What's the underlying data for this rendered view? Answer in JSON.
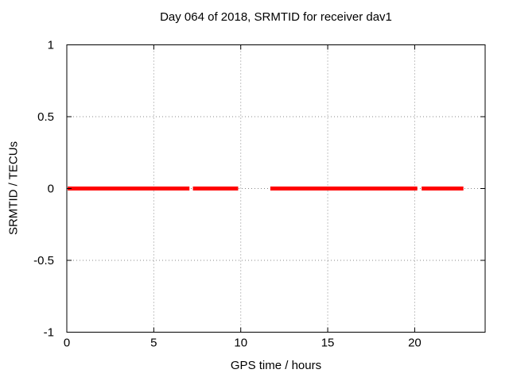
{
  "chart_data": {
    "type": "line",
    "title": "Day 064 of 2018, SRMTID for receiver dav1",
    "xlabel": "GPS time / hours",
    "ylabel": "SRMTID / TECUs",
    "xlim": [
      0,
      24.05
    ],
    "ylim": [
      -1,
      1
    ],
    "xticks": [
      0,
      5,
      10,
      15,
      20
    ],
    "xtick_labels": [
      "0",
      "5",
      "10",
      "15",
      "20"
    ],
    "yticks": [
      -1,
      -0.5,
      0,
      0.5,
      1
    ],
    "ytick_labels": [
      "-1",
      "-0.5",
      "0",
      "0.5",
      "1"
    ],
    "grid": true,
    "legend": false,
    "series": [
      {
        "name": "SRMTID",
        "color": "#ff0000",
        "value_tecus": 0,
        "segments_hours": [
          [
            0.05,
            7.05
          ],
          [
            7.25,
            9.85
          ],
          [
            11.7,
            20.15
          ],
          [
            20.4,
            22.8
          ]
        ]
      }
    ]
  },
  "colors": {
    "background": "#ffffff",
    "frame": "#000000",
    "grid": "#888888",
    "text": "#000000",
    "line": "#ff0000"
  }
}
